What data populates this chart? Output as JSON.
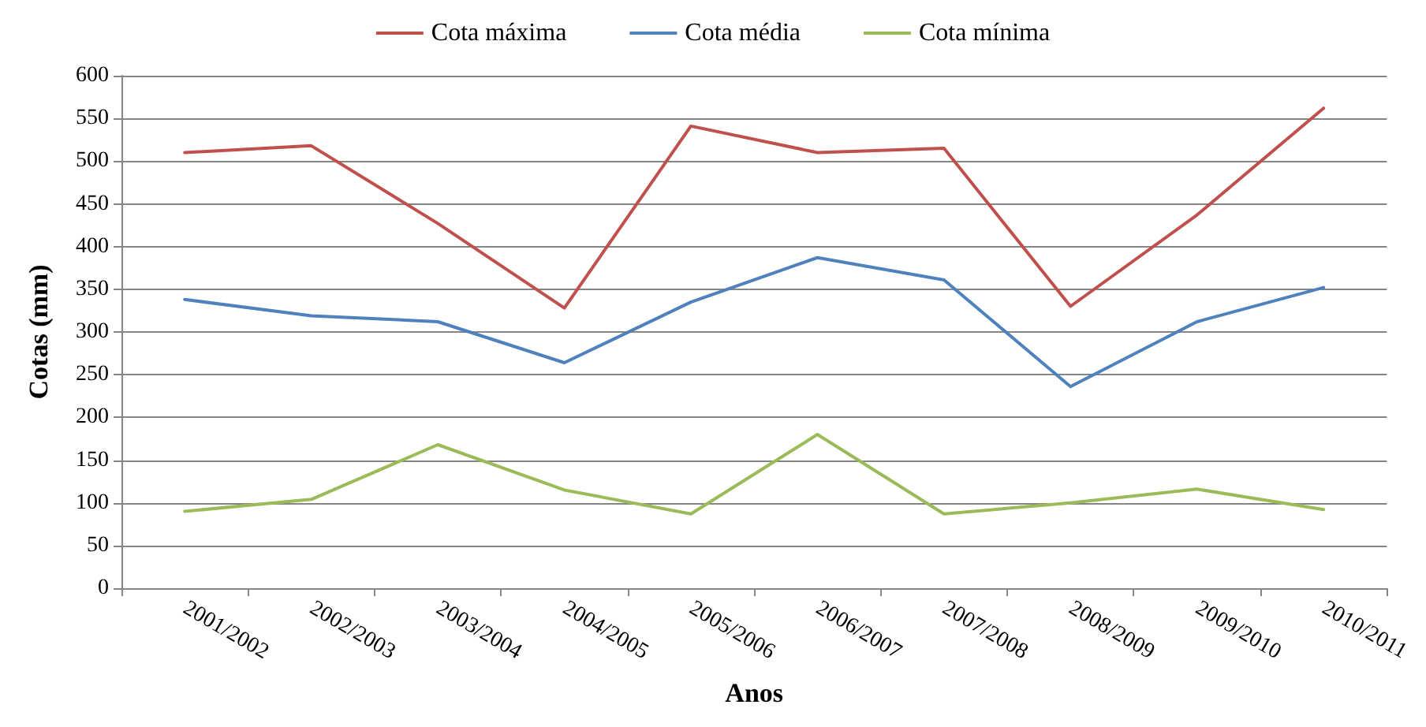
{
  "chart_data": {
    "type": "line",
    "xlabel": "Anos",
    "ylabel": "Cotas (mm)",
    "categories": [
      "2001/2002",
      "2002/2003",
      "2003/2004",
      "2004/2005",
      "2005/2006",
      "2006/2007",
      "2007/2008",
      "2008/2009",
      "2009/2010",
      "2010/2011"
    ],
    "series": [
      {
        "name": "Cota máxima",
        "color": "#c0504d",
        "values": [
          510,
          518,
          427,
          328,
          541,
          510,
          515,
          330,
          437,
          562
        ]
      },
      {
        "name": "Cota média",
        "color": "#4f81bd",
        "values": [
          338,
          319,
          312,
          264,
          335,
          387,
          361,
          236,
          312,
          352
        ]
      },
      {
        "name": "Cota mínima",
        "color": "#9bbb59",
        "values": [
          90,
          104,
          168,
          115,
          87,
          180,
          87,
          100,
          116,
          92
        ]
      }
    ],
    "ylim": [
      0,
      600
    ],
    "yticks": [
      0,
      50,
      100,
      150,
      200,
      250,
      300,
      350,
      400,
      450,
      500,
      550,
      600
    ],
    "grid": "y",
    "legend": "top",
    "marker": "none",
    "line_style": "solid"
  }
}
